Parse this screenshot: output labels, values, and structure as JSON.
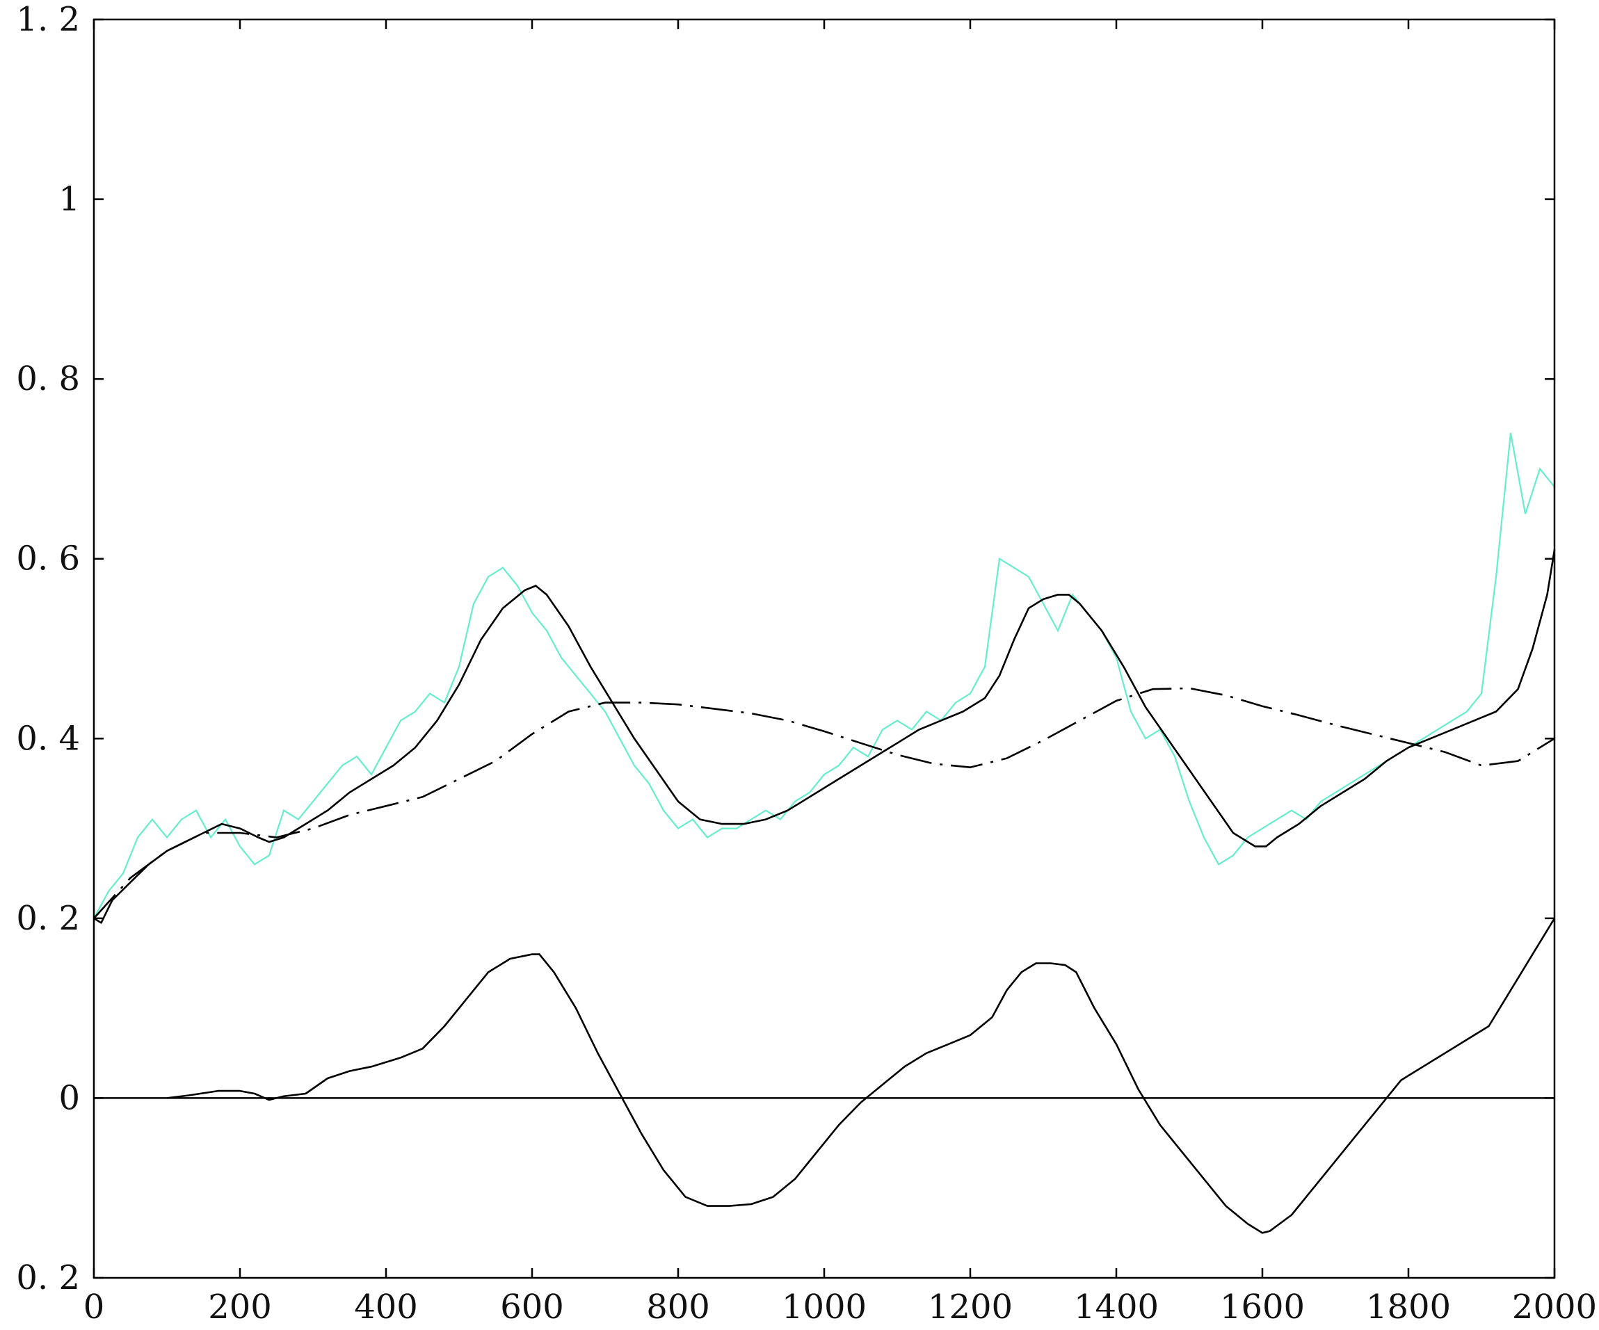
{
  "chart_data": {
    "type": "line",
    "title": "",
    "xlabel": "",
    "ylabel": "",
    "xlim": [
      0,
      2000
    ],
    "ylim": [
      -0.2,
      1.2
    ],
    "xticks": [
      0,
      200,
      400,
      600,
      800,
      1000,
      1200,
      1400,
      1600,
      1800,
      2000
    ],
    "xtick_labels": [
      "0",
      "200",
      "400",
      "600",
      "800",
      "1000",
      "1200",
      "1400",
      "1600",
      "1800",
      "2000"
    ],
    "yticks": [
      -0.2,
      0,
      0.2,
      0.4,
      0.6,
      0.8,
      1.0,
      1.2
    ],
    "ytick_labels": [
      "0. 2",
      "0",
      "0. 2",
      "0. 4",
      "0. 6",
      "0. 8",
      "1",
      "1. 2"
    ],
    "grid": false,
    "legend": "none",
    "zero_line": true,
    "colors": {
      "noisy": "#66eecc",
      "smooth": "#000000",
      "trend": "#000000",
      "diff": "#000000",
      "axis": "#000000"
    },
    "series": [
      {
        "style": "noisy",
        "x": [
          0,
          20,
          40,
          60,
          80,
          100,
          120,
          140,
          160,
          180,
          200,
          220,
          240,
          260,
          280,
          300,
          320,
          340,
          360,
          380,
          400,
          420,
          440,
          460,
          480,
          500,
          520,
          540,
          560,
          580,
          600,
          620,
          640,
          660,
          680,
          700,
          720,
          740,
          760,
          780,
          800,
          820,
          840,
          860,
          880,
          900,
          920,
          940,
          960,
          980,
          1000,
          1020,
          1040,
          1060,
          1080,
          1100,
          1120,
          1140,
          1160,
          1180,
          1200,
          1220,
          1240,
          1260,
          1280,
          1300,
          1320,
          1340,
          1360,
          1380,
          1400,
          1420,
          1440,
          1460,
          1480,
          1500,
          1520,
          1540,
          1560,
          1580,
          1600,
          1620,
          1640,
          1660,
          1680,
          1700,
          1720,
          1740,
          1760,
          1780,
          1800,
          1820,
          1840,
          1860,
          1880,
          1900,
          1920,
          1940,
          1960,
          1980,
          2000
        ],
        "y": [
          0.2,
          0.23,
          0.25,
          0.29,
          0.31,
          0.29,
          0.31,
          0.32,
          0.29,
          0.31,
          0.28,
          0.26,
          0.27,
          0.32,
          0.31,
          0.33,
          0.35,
          0.37,
          0.38,
          0.36,
          0.39,
          0.42,
          0.43,
          0.45,
          0.44,
          0.48,
          0.55,
          0.58,
          0.59,
          0.57,
          0.54,
          0.52,
          0.49,
          0.47,
          0.45,
          0.43,
          0.4,
          0.37,
          0.35,
          0.32,
          0.3,
          0.31,
          0.29,
          0.3,
          0.3,
          0.31,
          0.32,
          0.31,
          0.33,
          0.34,
          0.36,
          0.37,
          0.39,
          0.38,
          0.41,
          0.42,
          0.41,
          0.43,
          0.42,
          0.44,
          0.45,
          0.48,
          0.6,
          0.59,
          0.58,
          0.55,
          0.52,
          0.56,
          0.54,
          0.52,
          0.49,
          0.43,
          0.4,
          0.41,
          0.38,
          0.33,
          0.29,
          0.26,
          0.27,
          0.29,
          0.3,
          0.31,
          0.32,
          0.31,
          0.33,
          0.34,
          0.35,
          0.36,
          0.37,
          0.38,
          0.39,
          0.4,
          0.41,
          0.42,
          0.43,
          0.45,
          0.58,
          0.74,
          0.65,
          0.7,
          0.68
        ]
      },
      {
        "style": "smooth",
        "x": [
          0,
          10,
          25,
          50,
          75,
          100,
          125,
          150,
          175,
          200,
          225,
          240,
          260,
          290,
          320,
          350,
          380,
          410,
          440,
          470,
          500,
          530,
          560,
          590,
          605,
          620,
          650,
          680,
          710,
          740,
          770,
          800,
          830,
          860,
          890,
          920,
          950,
          980,
          1010,
          1040,
          1070,
          1100,
          1130,
          1160,
          1190,
          1220,
          1240,
          1260,
          1280,
          1300,
          1320,
          1335,
          1350,
          1380,
          1410,
          1440,
          1470,
          1500,
          1530,
          1560,
          1590,
          1605,
          1620,
          1650,
          1680,
          1710,
          1740,
          1770,
          1800,
          1830,
          1860,
          1890,
          1920,
          1950,
          1970,
          1990,
          2000
        ],
        "y": [
          0.2,
          0.195,
          0.22,
          0.24,
          0.26,
          0.275,
          0.285,
          0.295,
          0.305,
          0.3,
          0.29,
          0.285,
          0.29,
          0.305,
          0.32,
          0.34,
          0.355,
          0.37,
          0.39,
          0.42,
          0.46,
          0.51,
          0.545,
          0.565,
          0.57,
          0.56,
          0.525,
          0.48,
          0.44,
          0.4,
          0.365,
          0.33,
          0.31,
          0.305,
          0.305,
          0.31,
          0.32,
          0.335,
          0.35,
          0.365,
          0.38,
          0.395,
          0.41,
          0.42,
          0.43,
          0.445,
          0.47,
          0.51,
          0.545,
          0.555,
          0.56,
          0.56,
          0.55,
          0.52,
          0.48,
          0.435,
          0.4,
          0.365,
          0.33,
          0.295,
          0.28,
          0.28,
          0.29,
          0.305,
          0.325,
          0.34,
          0.355,
          0.375,
          0.39,
          0.4,
          0.41,
          0.42,
          0.43,
          0.455,
          0.5,
          0.56,
          0.61
        ]
      },
      {
        "style": "trend",
        "x": [
          0,
          50,
          100,
          150,
          200,
          250,
          300,
          350,
          400,
          450,
          500,
          550,
          600,
          650,
          700,
          750,
          800,
          850,
          900,
          950,
          1000,
          1050,
          1100,
          1150,
          1200,
          1250,
          1300,
          1350,
          1400,
          1450,
          1500,
          1550,
          1600,
          1650,
          1700,
          1750,
          1800,
          1850,
          1900,
          1950,
          2000
        ],
        "y": [
          0.2,
          0.245,
          0.275,
          0.295,
          0.295,
          0.29,
          0.3,
          0.315,
          0.325,
          0.335,
          0.355,
          0.375,
          0.405,
          0.43,
          0.44,
          0.44,
          0.438,
          0.433,
          0.428,
          0.42,
          0.408,
          0.395,
          0.382,
          0.372,
          0.368,
          0.378,
          0.398,
          0.42,
          0.442,
          0.455,
          0.456,
          0.448,
          0.436,
          0.426,
          0.415,
          0.405,
          0.395,
          0.385,
          0.37,
          0.375,
          0.4
        ]
      },
      {
        "style": "diff",
        "x": [
          100,
          130,
          170,
          200,
          220,
          240,
          260,
          290,
          320,
          350,
          380,
          420,
          450,
          480,
          510,
          540,
          570,
          600,
          610,
          630,
          660,
          690,
          720,
          750,
          780,
          810,
          840,
          870,
          900,
          930,
          960,
          990,
          1020,
          1050,
          1080,
          1110,
          1140,
          1170,
          1200,
          1230,
          1250,
          1270,
          1290,
          1310,
          1330,
          1345,
          1370,
          1400,
          1430,
          1460,
          1490,
          1520,
          1550,
          1580,
          1600,
          1610,
          1640,
          1670,
          1700,
          1730,
          1760,
          1790,
          1820,
          1850,
          1880,
          1910,
          1940,
          1970,
          2000
        ],
        "y": [
          0,
          0.003,
          0.008,
          0.008,
          0.005,
          -0.002,
          0.002,
          0.005,
          0.022,
          0.03,
          0.035,
          0.045,
          0.055,
          0.08,
          0.11,
          0.14,
          0.155,
          0.16,
          0.16,
          0.14,
          0.1,
          0.05,
          0.005,
          -0.04,
          -0.08,
          -0.11,
          -0.12,
          -0.12,
          -0.118,
          -0.11,
          -0.09,
          -0.06,
          -0.03,
          -0.005,
          0.015,
          0.035,
          0.05,
          0.06,
          0.07,
          0.09,
          0.12,
          0.14,
          0.15,
          0.15,
          0.148,
          0.14,
          0.1,
          0.06,
          0.01,
          -0.03,
          -0.06,
          -0.09,
          -0.12,
          -0.14,
          -0.15,
          -0.148,
          -0.13,
          -0.1,
          -0.07,
          -0.04,
          -0.01,
          0.02,
          0.035,
          0.05,
          0.065,
          0.08,
          0.12,
          0.16,
          0.2
        ]
      }
    ]
  }
}
